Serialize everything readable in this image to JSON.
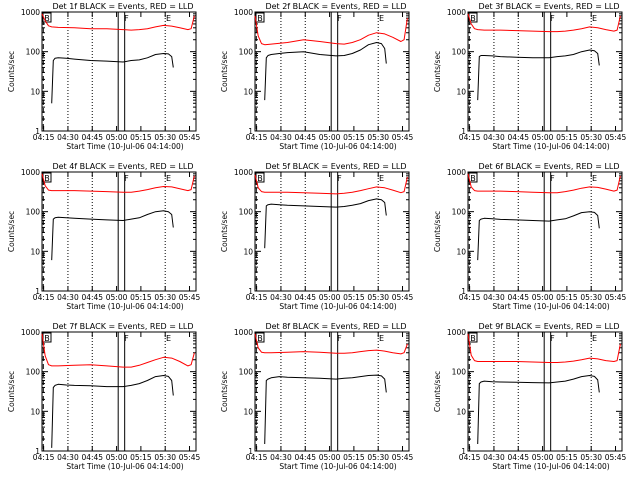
{
  "chart_data": [
    {
      "type": "line",
      "title": "Det 1f BLACK = Events, RED = LLD",
      "xlabel": "Start Time (10-Jul-06 04:14:00)",
      "ylabel": "Counts/sec",
      "x_ticks": [
        "04:15",
        "04:30",
        "04:45",
        "05:00",
        "05:15",
        "05:30",
        "05:45"
      ],
      "y_ticks": [
        "1",
        "10",
        "100",
        "1000"
      ],
      "yscale": "log",
      "ylim": [
        1,
        1000
      ],
      "markers": [
        "B",
        "F",
        "E"
      ],
      "series": [
        {
          "color": "#ff0000",
          "t": [
            0,
            2,
            4,
            6,
            10,
            20,
            30,
            40,
            50,
            55,
            60,
            65,
            70,
            75,
            80,
            85,
            90,
            92,
            94
          ],
          "v": [
            900,
            600,
            450,
            420,
            410,
            400,
            380,
            380,
            360,
            350,
            360,
            380,
            420,
            460,
            440,
            400,
            360,
            380,
            800
          ]
        },
        {
          "color": "#000000",
          "t": [
            6,
            7,
            8,
            10,
            15,
            20,
            30,
            40,
            50,
            55,
            60,
            65,
            70,
            75,
            78,
            80,
            81
          ],
          "v": [
            5,
            60,
            68,
            70,
            68,
            65,
            60,
            58,
            55,
            60,
            62,
            70,
            85,
            90,
            88,
            75,
            40
          ]
        }
      ]
    },
    {
      "type": "line",
      "title": "Det 2f BLACK = Events, RED = LLD",
      "xlabel": "Start Time (10-Jul-06 04:14:00)",
      "ylabel": "Counts/sec",
      "x_ticks": [
        "04:15",
        "04:30",
        "04:45",
        "05:00",
        "05:15",
        "05:30",
        "05:45"
      ],
      "y_ticks": [
        "1",
        "10",
        "100",
        "1000"
      ],
      "yscale": "log",
      "ylim": [
        1,
        1000
      ],
      "markers": [
        "B",
        "F",
        "E"
      ],
      "series": [
        {
          "color": "#ff0000",
          "t": [
            0,
            2,
            4,
            6,
            10,
            20,
            30,
            40,
            50,
            55,
            60,
            65,
            70,
            75,
            80,
            85,
            90,
            92,
            94
          ],
          "v": [
            800,
            250,
            160,
            150,
            155,
            170,
            200,
            180,
            160,
            155,
            170,
            200,
            260,
            300,
            280,
            230,
            180,
            200,
            700
          ]
        },
        {
          "color": "#000000",
          "t": [
            6,
            7,
            8,
            10,
            15,
            20,
            30,
            40,
            50,
            55,
            60,
            65,
            70,
            75,
            78,
            80,
            81
          ],
          "v": [
            6,
            70,
            80,
            85,
            90,
            95,
            100,
            85,
            78,
            80,
            90,
            110,
            150,
            170,
            160,
            120,
            50
          ]
        }
      ]
    },
    {
      "type": "line",
      "title": "Det 3f BLACK = Events, RED = LLD",
      "xlabel": "Start Time (10-Jul-06 04:14:00)",
      "ylabel": "Counts/sec",
      "x_ticks": [
        "04:15",
        "04:30",
        "04:45",
        "05:00",
        "05:15",
        "05:30",
        "05:45"
      ],
      "y_ticks": [
        "1",
        "10",
        "100",
        "1000"
      ],
      "yscale": "log",
      "ylim": [
        1,
        1000
      ],
      "markers": [
        "B",
        "F",
        "E"
      ],
      "series": [
        {
          "color": "#ff0000",
          "t": [
            0,
            2,
            4,
            6,
            10,
            20,
            30,
            40,
            50,
            55,
            60,
            65,
            70,
            75,
            80,
            85,
            90,
            92,
            94
          ],
          "v": [
            900,
            500,
            380,
            360,
            350,
            350,
            340,
            330,
            320,
            320,
            330,
            350,
            380,
            420,
            400,
            360,
            330,
            350,
            800
          ]
        },
        {
          "color": "#000000",
          "t": [
            6,
            7,
            8,
            10,
            15,
            20,
            30,
            40,
            50,
            55,
            60,
            65,
            70,
            75,
            78,
            80,
            81
          ],
          "v": [
            6,
            75,
            80,
            80,
            78,
            75,
            72,
            70,
            70,
            75,
            78,
            85,
            100,
            110,
            105,
            90,
            45
          ]
        }
      ]
    },
    {
      "type": "line",
      "title": "Det 4f BLACK = Events, RED = LLD",
      "xlabel": "Start Time (10-Jul-06 04:14:00)",
      "ylabel": "Counts/sec",
      "x_ticks": [
        "04:15",
        "04:30",
        "04:45",
        "05:00",
        "05:15",
        "05:30",
        "05:45"
      ],
      "y_ticks": [
        "1",
        "10",
        "100",
        "1000"
      ],
      "yscale": "log",
      "ylim": [
        1,
        1000
      ],
      "markers": [
        "B",
        "F",
        "E"
      ],
      "series": [
        {
          "color": "#ff0000",
          "t": [
            0,
            2,
            4,
            6,
            10,
            20,
            30,
            40,
            50,
            55,
            60,
            65,
            70,
            75,
            80,
            85,
            90,
            92,
            94
          ],
          "v": [
            900,
            450,
            350,
            340,
            340,
            340,
            330,
            320,
            310,
            310,
            330,
            360,
            400,
            430,
            420,
            380,
            340,
            360,
            800
          ]
        },
        {
          "color": "#000000",
          "t": [
            6,
            7,
            8,
            10,
            15,
            20,
            30,
            40,
            50,
            55,
            60,
            65,
            70,
            75,
            78,
            80,
            81
          ],
          "v": [
            6,
            65,
            70,
            72,
            70,
            68,
            65,
            62,
            60,
            65,
            70,
            85,
            100,
            105,
            100,
            85,
            40
          ]
        }
      ]
    },
    {
      "type": "line",
      "title": "Det 5f BLACK = Events, RED = LLD",
      "xlabel": "Start Time (10-Jul-06 04:14:00)",
      "ylabel": "Counts/sec",
      "x_ticks": [
        "04:15",
        "04:30",
        "04:45",
        "05:00",
        "05:15",
        "05:30",
        "05:45"
      ],
      "y_ticks": [
        "1",
        "10",
        "100",
        "1000"
      ],
      "yscale": "log",
      "ylim": [
        1,
        1000
      ],
      "markers": [
        "B",
        "F",
        "E"
      ],
      "series": [
        {
          "color": "#ff0000",
          "t": [
            0,
            2,
            4,
            6,
            10,
            20,
            30,
            40,
            50,
            55,
            60,
            65,
            70,
            75,
            80,
            85,
            90,
            92,
            94
          ],
          "v": [
            850,
            400,
            320,
            310,
            310,
            310,
            300,
            290,
            280,
            290,
            310,
            340,
            380,
            420,
            400,
            350,
            300,
            320,
            750
          ]
        },
        {
          "color": "#000000",
          "t": [
            6,
            7,
            8,
            10,
            15,
            20,
            30,
            40,
            50,
            55,
            60,
            65,
            70,
            75,
            78,
            80,
            81
          ],
          "v": [
            12,
            140,
            150,
            155,
            150,
            145,
            140,
            135,
            130,
            135,
            145,
            160,
            190,
            210,
            200,
            170,
            80
          ]
        }
      ]
    },
    {
      "type": "line",
      "title": "Det 6f BLACK = Events, RED = LLD",
      "xlabel": "Start Time (10-Jul-06 04:14:00)",
      "ylabel": "Counts/sec",
      "x_ticks": [
        "04:15",
        "04:30",
        "04:45",
        "05:00",
        "05:15",
        "05:30",
        "05:45"
      ],
      "y_ticks": [
        "1",
        "10",
        "100",
        "1000"
      ],
      "yscale": "log",
      "ylim": [
        1,
        1000
      ],
      "markers": [
        "B",
        "F",
        "E"
      ],
      "series": [
        {
          "color": "#ff0000",
          "t": [
            0,
            2,
            4,
            6,
            10,
            20,
            30,
            40,
            50,
            55,
            60,
            65,
            70,
            75,
            80,
            85,
            90,
            92,
            94
          ],
          "v": [
            900,
            420,
            340,
            330,
            330,
            330,
            320,
            310,
            300,
            300,
            320,
            350,
            390,
            420,
            410,
            370,
            330,
            350,
            800
          ]
        },
        {
          "color": "#000000",
          "t": [
            6,
            7,
            8,
            10,
            15,
            20,
            30,
            40,
            50,
            55,
            60,
            65,
            70,
            75,
            78,
            80,
            81
          ],
          "v": [
            6,
            60,
            65,
            68,
            66,
            64,
            62,
            60,
            58,
            62,
            66,
            78,
            95,
            100,
            96,
            80,
            38
          ]
        }
      ]
    },
    {
      "type": "line",
      "title": "Det 7f BLACK = Events, RED = LLD",
      "xlabel": "Start Time (10-Jul-06 04:14:00)",
      "ylabel": "Counts/sec",
      "x_ticks": [
        "04:15",
        "04:30",
        "04:45",
        "05:00",
        "05:15",
        "05:30",
        "05:45"
      ],
      "y_ticks": [
        "1",
        "10",
        "100",
        "1000"
      ],
      "yscale": "log",
      "ylim": [
        1,
        1000
      ],
      "markers": [
        "B",
        "F",
        "E"
      ],
      "series": [
        {
          "color": "#ff0000",
          "t": [
            0,
            2,
            4,
            6,
            10,
            20,
            30,
            40,
            50,
            55,
            60,
            65,
            70,
            75,
            80,
            85,
            90,
            92,
            94
          ],
          "v": [
            900,
            250,
            150,
            140,
            140,
            145,
            150,
            140,
            130,
            130,
            145,
            170,
            200,
            230,
            220,
            180,
            140,
            150,
            300
          ]
        },
        {
          "color": "#000000",
          "t": [
            6,
            7,
            8,
            10,
            15,
            20,
            30,
            40,
            50,
            55,
            60,
            65,
            70,
            75,
            78,
            80,
            81
          ],
          "v": [
            1.2,
            40,
            45,
            48,
            46,
            45,
            44,
            42,
            42,
            45,
            50,
            60,
            75,
            80,
            76,
            60,
            25
          ]
        }
      ]
    },
    {
      "type": "line",
      "title": "Det 8f BLACK = Events, RED = LLD",
      "xlabel": "Start Time (10-Jul-06 04:14:00)",
      "ylabel": "Counts/sec",
      "x_ticks": [
        "04:15",
        "04:30",
        "04:45",
        "05:00",
        "05:15",
        "05:30",
        "05:45"
      ],
      "y_ticks": [
        "1",
        "10",
        "100",
        "1000"
      ],
      "yscale": "log",
      "ylim": [
        1,
        1000
      ],
      "markers": [
        "B",
        "F",
        "E"
      ],
      "series": [
        {
          "color": "#ff0000",
          "t": [
            0,
            2,
            4,
            6,
            10,
            20,
            30,
            40,
            50,
            55,
            60,
            65,
            70,
            75,
            80,
            85,
            90,
            92,
            94
          ],
          "v": [
            900,
            400,
            310,
            300,
            300,
            310,
            320,
            310,
            290,
            290,
            300,
            320,
            340,
            350,
            330,
            300,
            280,
            300,
            500
          ]
        },
        {
          "color": "#000000",
          "t": [
            6,
            7,
            8,
            10,
            15,
            20,
            30,
            40,
            50,
            55,
            60,
            65,
            70,
            75,
            78,
            80,
            81
          ],
          "v": [
            1.5,
            60,
            65,
            70,
            75,
            72,
            70,
            68,
            65,
            68,
            70,
            75,
            80,
            82,
            78,
            65,
            30
          ]
        }
      ]
    },
    {
      "type": "line",
      "title": "Det 9f BLACK = Events, RED = LLD",
      "xlabel": "Start Time (10-Jul-06 04:14:00)",
      "ylabel": "Counts/sec",
      "x_ticks": [
        "04:15",
        "04:30",
        "04:45",
        "05:00",
        "05:15",
        "05:30",
        "05:45"
      ],
      "y_ticks": [
        "1",
        "10",
        "100",
        "1000"
      ],
      "yscale": "log",
      "ylim": [
        1,
        1000
      ],
      "markers": [
        "B",
        "F",
        "E"
      ],
      "series": [
        {
          "color": "#ff0000",
          "t": [
            0,
            2,
            4,
            6,
            10,
            20,
            30,
            40,
            50,
            55,
            60,
            65,
            70,
            75,
            80,
            85,
            90,
            92,
            94
          ],
          "v": [
            900,
            260,
            190,
            180,
            180,
            180,
            180,
            175,
            170,
            170,
            175,
            185,
            200,
            220,
            210,
            190,
            180,
            190,
            500
          ]
        },
        {
          "color": "#000000",
          "t": [
            6,
            7,
            8,
            10,
            15,
            20,
            30,
            40,
            50,
            55,
            60,
            65,
            70,
            75,
            78,
            80,
            81
          ],
          "v": [
            1.5,
            50,
            55,
            58,
            56,
            55,
            54,
            53,
            52,
            55,
            58,
            65,
            75,
            80,
            76,
            62,
            30
          ]
        }
      ]
    }
  ]
}
